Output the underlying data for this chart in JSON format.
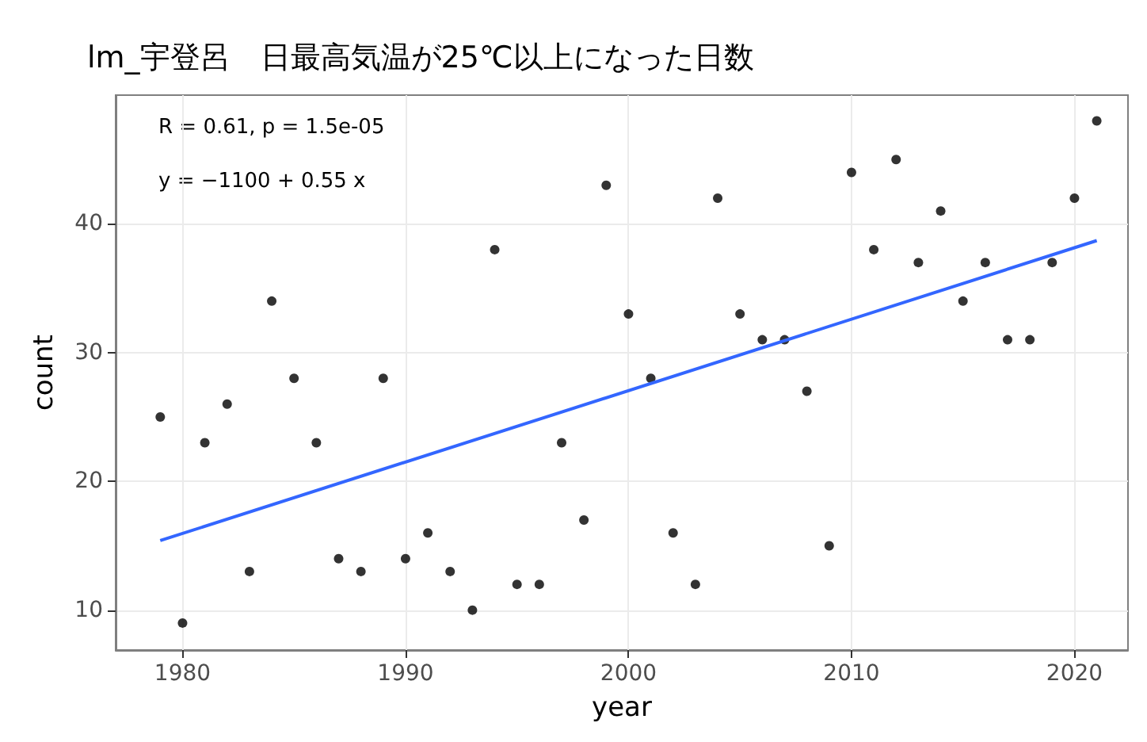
{
  "chart_data": {
    "type": "scatter",
    "title": "lm_宇登呂　日最高気温が25℃以上になった日数",
    "xlabel": "year",
    "ylabel": "count",
    "annotations": [
      "R = 0.61, p = 1.5e-05",
      "y = −1100 + 0.55 x"
    ],
    "xlim": [
      1977,
      2022.4
    ],
    "xticks": [
      1980,
      1990,
      2000,
      2010,
      2020
    ],
    "ylim": [
      6.9,
      50
    ],
    "yticks": [
      10,
      20,
      30,
      40
    ],
    "grid": true,
    "marker": "circle",
    "series": [
      {
        "color": "#000000",
        "x": [
          1979,
          1980,
          1981,
          1982,
          1983,
          1984,
          1985,
          1986,
          1987,
          1988,
          1989,
          1990,
          1991,
          1992,
          1993,
          1994,
          1995,
          1996,
          1997,
          1998,
          1999,
          2000,
          2001,
          2002,
          2003,
          2004,
          2005,
          2006,
          2007,
          2008,
          2009,
          2010,
          2011,
          2012,
          2013,
          2014,
          2015,
          2016,
          2017,
          2018,
          2019,
          2020,
          2021
        ],
        "values": [
          25,
          9,
          23,
          26,
          13,
          34,
          28,
          23,
          14,
          13,
          28,
          14,
          16,
          13,
          10,
          38,
          12,
          12,
          23,
          17,
          43,
          33,
          28,
          16,
          12,
          42,
          33,
          31,
          31,
          27,
          15,
          44,
          38,
          45,
          37,
          41,
          34,
          37,
          31,
          31,
          37,
          42,
          48
        ]
      },
      {
        "type": "line",
        "marker": "none",
        "color": "#3366ff",
        "x": [
          1979,
          2021
        ],
        "values": [
          15.4,
          38.7
        ]
      }
    ]
  }
}
